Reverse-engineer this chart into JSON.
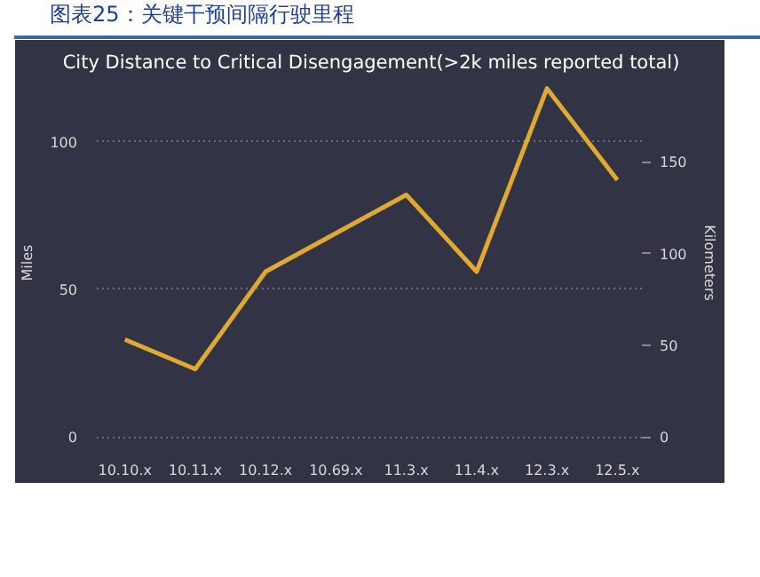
{
  "chart_data": {
    "type": "line",
    "title": "图表25：关键干预间隔行驶里程",
    "subtitle": "City Distance to Critical Disengagement(>2k miles reported total)",
    "categories": [
      "10.10.x",
      "10.11.x",
      "10.12.x",
      "10.69.x",
      "11.3.x",
      "11.4.x",
      "12.3.x",
      "12.5.x"
    ],
    "series": [
      {
        "color": "#e0aa30",
        "values": [
          33,
          23,
          56,
          69,
          82,
          56,
          118,
          87
        ]
      }
    ],
    "ylabel": "Miles",
    "y2label": "Kilometers",
    "ylim": [
      -2,
      120
    ],
    "yticks": [
      0,
      50,
      100
    ],
    "y2lim": [
      -3.2,
      193.1
    ],
    "y2ticks": [
      0,
      50,
      100,
      150
    ],
    "grid": "y",
    "marker": "none",
    "line_style": "solid"
  }
}
